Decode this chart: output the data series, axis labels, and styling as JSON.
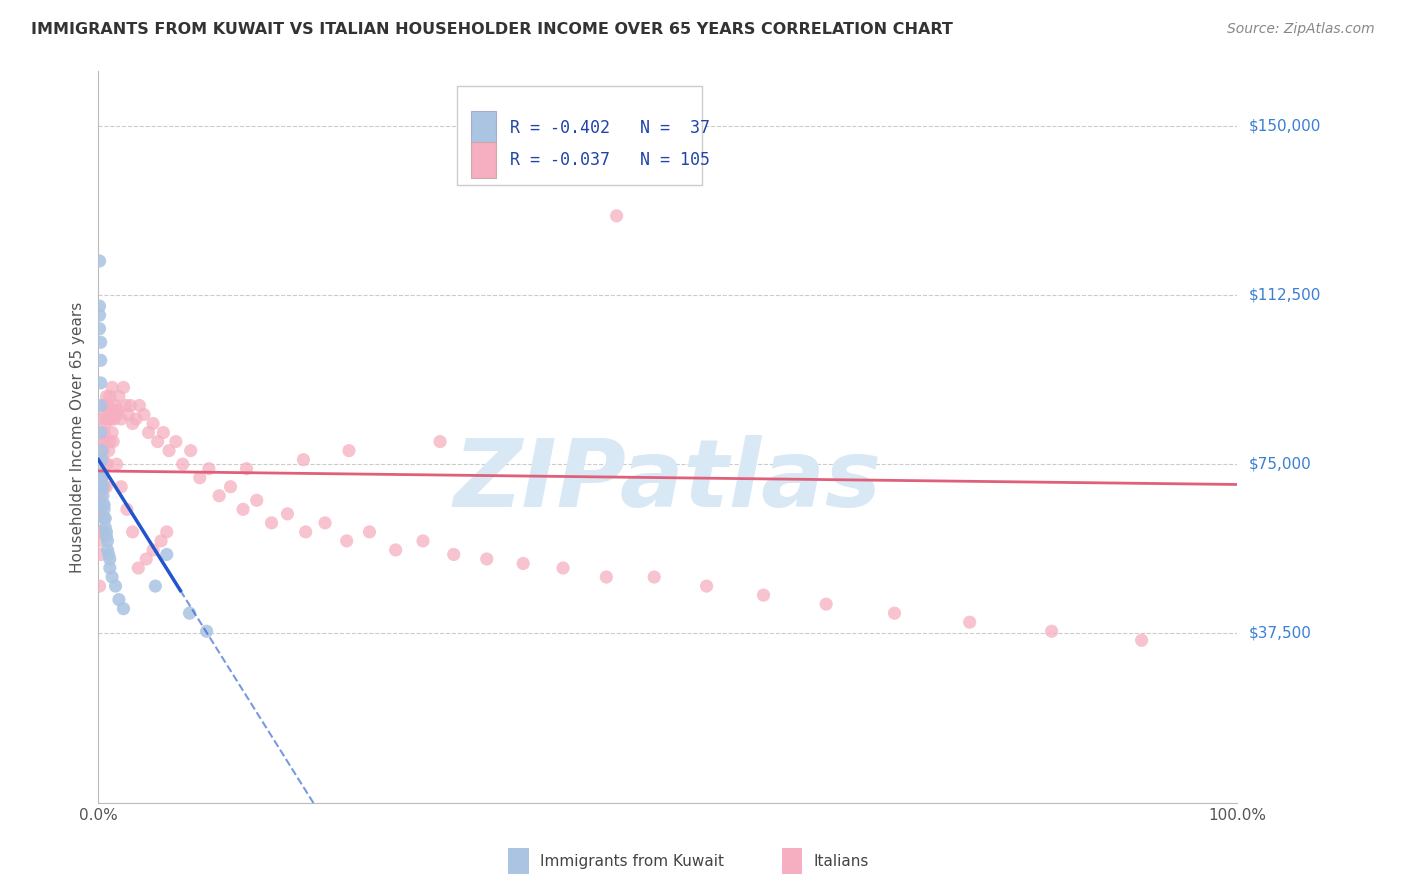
{
  "title": "IMMIGRANTS FROM KUWAIT VS ITALIAN HOUSEHOLDER INCOME OVER 65 YEARS CORRELATION CHART",
  "source": "Source: ZipAtlas.com",
  "ylabel": "Householder Income Over 65 years",
  "legend_label1": "Immigrants from Kuwait",
  "legend_label2": "Italians",
  "r1": -0.402,
  "n1": 37,
  "r2": -0.037,
  "n2": 105,
  "color_kuwait": "#aac4e2",
  "color_italian": "#f5afc0",
  "color_kuwait_line": "#2255cc",
  "color_italian_line": "#e0607a",
  "watermark_text": "ZIPatlas",
  "watermark_color": "#d8e8f5",
  "background_color": "#ffffff",
  "grid_color": "#cccccc",
  "title_color": "#333333",
  "source_color": "#888888",
  "ytick_vals": [
    0,
    37500,
    75000,
    112500,
    150000
  ],
  "ytick_labels": [
    "",
    "$37,500",
    "$75,000",
    "$112,500",
    "$150,000"
  ],
  "xlim": [
    0.0,
    1.0
  ],
  "ylim": [
    0,
    162000
  ],
  "marker_size": 90,
  "kuwait_x": [
    0.001,
    0.001,
    0.001,
    0.001,
    0.002,
    0.002,
    0.002,
    0.002,
    0.002,
    0.003,
    0.003,
    0.003,
    0.003,
    0.003,
    0.004,
    0.004,
    0.004,
    0.005,
    0.005,
    0.005,
    0.006,
    0.006,
    0.007,
    0.007,
    0.008,
    0.008,
    0.009,
    0.01,
    0.01,
    0.012,
    0.015,
    0.018,
    0.022,
    0.05,
    0.06,
    0.08,
    0.095
  ],
  "kuwait_y": [
    120000,
    110000,
    108000,
    105000,
    102000,
    98000,
    93000,
    88000,
    82000,
    78000,
    76000,
    73000,
    72000,
    70000,
    70000,
    68000,
    66000,
    66000,
    65000,
    63000,
    63000,
    61000,
    60000,
    59000,
    58000,
    56000,
    55000,
    54000,
    52000,
    50000,
    48000,
    45000,
    43000,
    48000,
    55000,
    42000,
    38000
  ],
  "italian_x": [
    0.001,
    0.001,
    0.001,
    0.002,
    0.002,
    0.002,
    0.002,
    0.003,
    0.003,
    0.003,
    0.003,
    0.004,
    0.004,
    0.004,
    0.005,
    0.005,
    0.005,
    0.006,
    0.006,
    0.007,
    0.007,
    0.007,
    0.008,
    0.008,
    0.009,
    0.009,
    0.01,
    0.01,
    0.011,
    0.012,
    0.012,
    0.013,
    0.014,
    0.015,
    0.016,
    0.017,
    0.018,
    0.02,
    0.022,
    0.024,
    0.026,
    0.028,
    0.03,
    0.033,
    0.036,
    0.04,
    0.044,
    0.048,
    0.052,
    0.057,
    0.062,
    0.068,
    0.074,
    0.081,
    0.089,
    0.097,
    0.106,
    0.116,
    0.127,
    0.139,
    0.152,
    0.166,
    0.182,
    0.199,
    0.218,
    0.238,
    0.261,
    0.285,
    0.312,
    0.341,
    0.373,
    0.408,
    0.446,
    0.488,
    0.534,
    0.584,
    0.639,
    0.699,
    0.765,
    0.837,
    0.916,
    0.06,
    0.055,
    0.048,
    0.042,
    0.035,
    0.03,
    0.025,
    0.02,
    0.016,
    0.013,
    0.01,
    0.008,
    0.006,
    0.005,
    0.004,
    0.003,
    0.002,
    0.002,
    0.001,
    0.455,
    0.3,
    0.22,
    0.18,
    0.13
  ],
  "italian_y": [
    68000,
    58000,
    48000,
    72000,
    65000,
    60000,
    55000,
    80000,
    76000,
    72000,
    60000,
    85000,
    78000,
    70000,
    88000,
    82000,
    70000,
    86000,
    75000,
    90000,
    85000,
    70000,
    88000,
    75000,
    87000,
    78000,
    90000,
    80000,
    85000,
    92000,
    82000,
    87000,
    85000,
    88000,
    86000,
    87000,
    90000,
    85000,
    92000,
    88000,
    86000,
    88000,
    84000,
    85000,
    88000,
    86000,
    82000,
    84000,
    80000,
    82000,
    78000,
    80000,
    75000,
    78000,
    72000,
    74000,
    68000,
    70000,
    65000,
    67000,
    62000,
    64000,
    60000,
    62000,
    58000,
    60000,
    56000,
    58000,
    55000,
    54000,
    53000,
    52000,
    50000,
    50000,
    48000,
    46000,
    44000,
    42000,
    40000,
    38000,
    36000,
    60000,
    58000,
    56000,
    54000,
    52000,
    60000,
    65000,
    70000,
    75000,
    80000,
    85000,
    88000,
    84000,
    80000,
    76000,
    72000,
    68000,
    64000,
    60000,
    130000,
    80000,
    78000,
    76000,
    74000
  ]
}
